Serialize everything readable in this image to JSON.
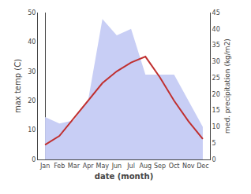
{
  "chart_data": {
    "type": "line",
    "categories": [
      "Jan",
      "Feb",
      "Mar",
      "Apr",
      "May",
      "Jun",
      "Jul",
      "Aug",
      "Sep",
      "Oct",
      "Nov",
      "Dec"
    ],
    "xlabel": "date (month)",
    "ylabel": "max temp (C)",
    "y2label": "med. precipitation (kg/m2)",
    "series": [
      {
        "type": "area",
        "axis": "y2",
        "color": "#c8cef5",
        "values": [
          13,
          11,
          12,
          18,
          43,
          38,
          40,
          26,
          26,
          26,
          18,
          10
        ]
      },
      {
        "type": "line",
        "color": "#c03030",
        "values": [
          5,
          8,
          14,
          20,
          26,
          30,
          33,
          35,
          28,
          20,
          13,
          7
        ]
      }
    ],
    "ylim": [
      0,
      50
    ],
    "yticks": [
      0,
      10,
      20,
      30,
      40,
      50
    ],
    "y2lim": [
      0,
      45
    ],
    "y2ticks": [
      0,
      5,
      10,
      15,
      20,
      25,
      30,
      35,
      40,
      45
    ],
    "grid": false
  }
}
